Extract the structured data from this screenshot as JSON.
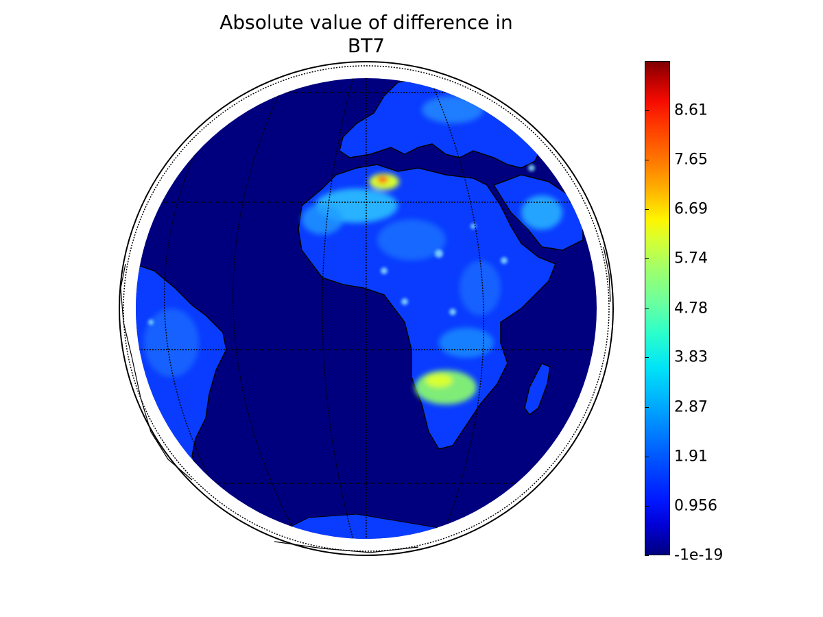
{
  "title": {
    "line1": "Absolute value of difference in",
    "line2": "BT7"
  },
  "colorbar": {
    "colormap": "jet",
    "ticks": [
      "-1e-19",
      "0.956",
      "1.91",
      "2.87",
      "3.83",
      "4.78",
      "5.74",
      "6.69",
      "7.65",
      "8.61"
    ],
    "tick_values": [
      0,
      0.956,
      1.91,
      2.87,
      3.83,
      4.78,
      5.74,
      6.69,
      7.65,
      8.61
    ],
    "range": [
      0,
      9.56
    ]
  },
  "map": {
    "projection": "orthographic",
    "ocean_color": "#00007f",
    "land_colors": [
      "#0a3cff",
      "#1f7bff",
      "#3fd8ff",
      "#c8ff3a",
      "#ff2a00"
    ],
    "gridlines": true
  }
}
